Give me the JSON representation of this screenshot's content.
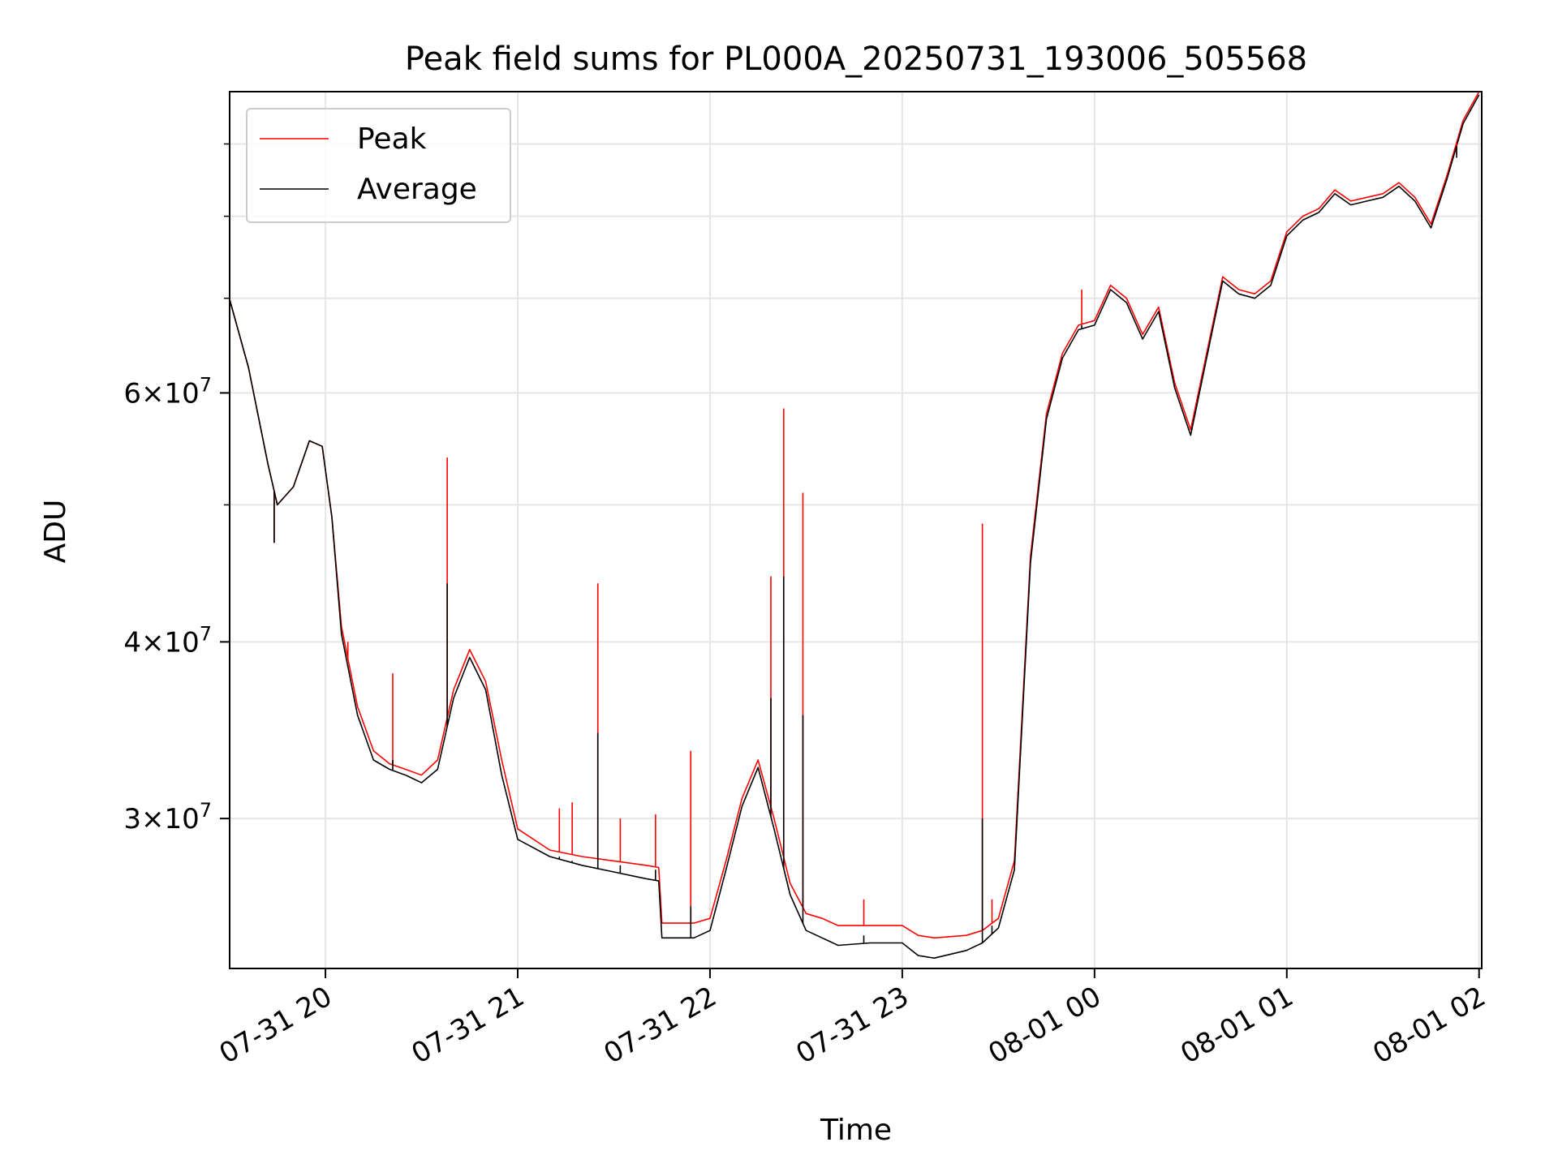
{
  "chart_data": {
    "type": "line",
    "title": "Peak field sums for PL000A_20250731_193006_505568",
    "xlabel": "Time",
    "ylabel": "ADU",
    "yscale": "log",
    "xlim": [
      "2025-07-31 19:30:06",
      "2025-08-01 02:00:50"
    ],
    "ylim": [
      23500000,
      98000000
    ],
    "grid": true,
    "legend_position": "upper left",
    "x_ticks": [
      {
        "t": "2025-07-31 20:00",
        "label": "07-31 20"
      },
      {
        "t": "2025-07-31 21:00",
        "label": "07-31 21"
      },
      {
        "t": "2025-07-31 22:00",
        "label": "07-31 22"
      },
      {
        "t": "2025-07-31 23:00",
        "label": "07-31 23"
      },
      {
        "t": "2025-08-01 00:00",
        "label": "08-01 00"
      },
      {
        "t": "2025-08-01 01:00",
        "label": "08-01 01"
      },
      {
        "t": "2025-08-01 02:00",
        "label": "08-01 02"
      }
    ],
    "y_ticks": [
      {
        "value": 30000000,
        "base": "3",
        "exp": "7"
      },
      {
        "value": 40000000,
        "base": "4",
        "exp": "7"
      },
      {
        "value": 60000000,
        "base": "6",
        "exp": "7"
      }
    ],
    "y_minor_ticks": [
      50000000,
      70000000,
      80000000,
      90000000
    ],
    "times_sorted": [
      "2025-07-31 19:30",
      "2025-07-31 19:36",
      "2025-07-31 19:42",
      "2025-07-31 19:45",
      "2025-07-31 19:50",
      "2025-07-31 19:55",
      "2025-07-31 19:59",
      "2025-07-31 20:02",
      "2025-07-31 20:05",
      "2025-07-31 20:10",
      "2025-07-31 20:15",
      "2025-07-31 20:20",
      "2025-07-31 20:25",
      "2025-07-31 20:30",
      "2025-07-31 20:35",
      "2025-07-31 20:40",
      "2025-07-31 20:45",
      "2025-07-31 20:50",
      "2025-07-31 20:55",
      "2025-07-31 21:00",
      "2025-07-31 21:10",
      "2025-07-31 21:20",
      "2025-07-31 21:30",
      "2025-07-31 21:40",
      "2025-07-31 21:44",
      "2025-07-31 21:45",
      "2025-07-31 21:55",
      "2025-07-31 22:00",
      "2025-07-31 22:05",
      "2025-07-31 22:10",
      "2025-07-31 22:15",
      "2025-07-31 22:20",
      "2025-07-31 22:25",
      "2025-07-31 22:30",
      "2025-07-31 22:35",
      "2025-07-31 22:40",
      "2025-07-31 22:50",
      "2025-07-31 23:00",
      "2025-07-31 23:05",
      "2025-07-31 23:10",
      "2025-07-31 23:20",
      "2025-07-31 23:25",
      "2025-07-31 23:30",
      "2025-07-31 23:35",
      "2025-07-31 23:40",
      "2025-07-31 23:45",
      "2025-07-31 23:50",
      "2025-07-31 23:55",
      "2025-08-01 00:00",
      "2025-08-01 00:05",
      "2025-08-01 00:10",
      "2025-08-01 00:15",
      "2025-08-01 00:20",
      "2025-08-01 00:25",
      "2025-08-01 00:30",
      "2025-08-01 00:35",
      "2025-08-01 00:40",
      "2025-08-01 00:45",
      "2025-08-01 00:50",
      "2025-08-01 00:55",
      "2025-08-01 01:00",
      "2025-08-01 01:05",
      "2025-08-01 01:10",
      "2025-08-01 01:15",
      "2025-08-01 01:20",
      "2025-08-01 01:25",
      "2025-08-01 01:30",
      "2025-08-01 01:35",
      "2025-08-01 01:40",
      "2025-08-01 01:45",
      "2025-08-01 01:50",
      "2025-08-01 01:55",
      "2025-08-01 02:00"
    ],
    "series": [
      {
        "name": "Peak",
        "color": "#ff0000",
        "x": [
          "2025-07-31 19:30",
          "2025-07-31 19:36",
          "2025-07-31 19:42",
          "2025-07-31 19:45",
          "2025-07-31 19:50",
          "2025-07-31 19:55",
          "2025-07-31 19:59",
          "2025-07-31 20:02",
          "2025-07-31 20:05",
          "2025-07-31 20:10",
          "2025-07-31 20:15",
          "2025-07-31 20:20",
          "2025-07-31 20:25",
          "2025-07-31 20:30",
          "2025-07-31 20:35",
          "2025-07-31 20:40",
          "2025-07-31 20:45",
          "2025-07-31 20:50",
          "2025-07-31 20:55",
          "2025-07-31 21:00",
          "2025-07-31 21:10",
          "2025-07-31 21:20",
          "2025-07-31 21:30",
          "2025-07-31 21:40",
          "2025-07-31 21:44",
          "2025-07-31 21:45",
          "2025-07-31 21:55",
          "2025-07-31 22:00",
          "2025-07-31 22:05",
          "2025-07-31 22:10",
          "2025-07-31 22:15",
          "2025-07-31 22:20",
          "2025-07-31 22:25",
          "2025-07-31 22:30",
          "2025-07-31 22:35",
          "2025-07-31 22:40",
          "2025-07-31 22:50",
          "2025-07-31 23:00",
          "2025-07-31 23:05",
          "2025-07-31 23:10",
          "2025-07-31 23:20",
          "2025-07-31 23:25",
          "2025-07-31 23:30",
          "2025-07-31 23:35",
          "2025-07-31 23:40",
          "2025-07-31 23:45",
          "2025-07-31 23:50",
          "2025-07-31 23:55",
          "2025-08-01 00:00",
          "2025-08-01 00:05",
          "2025-08-01 00:10",
          "2025-08-01 00:15",
          "2025-08-01 00:20",
          "2025-08-01 00:25",
          "2025-08-01 00:30",
          "2025-08-01 00:35",
          "2025-08-01 00:40",
          "2025-08-01 00:45",
          "2025-08-01 00:50",
          "2025-08-01 00:55",
          "2025-08-01 01:00",
          "2025-08-01 01:05",
          "2025-08-01 01:10",
          "2025-08-01 01:15",
          "2025-08-01 01:20",
          "2025-08-01 01:25",
          "2025-08-01 01:30",
          "2025-08-01 01:35",
          "2025-08-01 01:40",
          "2025-08-01 01:45",
          "2025-08-01 01:50",
          "2025-08-01 01:55",
          "2025-08-01 02:00"
        ],
        "values": [
          70000000,
          62500000,
          53500000,
          50000000,
          51500000,
          55500000,
          55000000,
          49000000,
          41000000,
          36000000,
          33500000,
          32800000,
          32500000,
          32200000,
          33000000,
          37000000,
          39500000,
          37500000,
          33000000,
          29500000,
          28500000,
          28200000,
          28000000,
          27800000,
          27700000,
          25300000,
          25300000,
          25500000,
          28000000,
          31000000,
          33000000,
          30000000,
          27000000,
          25700000,
          25500000,
          25200000,
          25200000,
          25200000,
          24800000,
          24700000,
          24800000,
          25000000,
          25500000,
          28000000,
          46000000,
          58000000,
          64000000,
          67000000,
          67500000,
          71500000,
          70000000,
          66000000,
          69000000,
          61000000,
          56500000,
          64000000,
          72500000,
          71000000,
          70500000,
          72000000,
          78000000,
          80000000,
          81000000,
          83500000,
          82000000,
          82500000,
          83000000,
          84500000,
          82500000,
          79000000,
          85500000,
          93500000,
          98000000
        ]
      },
      {
        "name": "Average",
        "color": "#000000",
        "x": [
          "2025-07-31 19:30",
          "2025-07-31 19:36",
          "2025-07-31 19:42",
          "2025-07-31 19:45",
          "2025-07-31 19:50",
          "2025-07-31 19:55",
          "2025-07-31 19:59",
          "2025-07-31 20:02",
          "2025-07-31 20:05",
          "2025-07-31 20:10",
          "2025-07-31 20:15",
          "2025-07-31 20:20",
          "2025-07-31 20:25",
          "2025-07-31 20:30",
          "2025-07-31 20:35",
          "2025-07-31 20:40",
          "2025-07-31 20:45",
          "2025-07-31 20:50",
          "2025-07-31 20:55",
          "2025-07-31 21:00",
          "2025-07-31 21:10",
          "2025-07-31 21:20",
          "2025-07-31 21:30",
          "2025-07-31 21:40",
          "2025-07-31 21:44",
          "2025-07-31 21:45",
          "2025-07-31 21:55",
          "2025-07-31 22:00",
          "2025-07-31 22:05",
          "2025-07-31 22:10",
          "2025-07-31 22:15",
          "2025-07-31 22:20",
          "2025-07-31 22:25",
          "2025-07-31 22:30",
          "2025-07-31 22:35",
          "2025-07-31 22:40",
          "2025-07-31 22:50",
          "2025-07-31 23:00",
          "2025-07-31 23:05",
          "2025-07-31 23:10",
          "2025-07-31 23:20",
          "2025-07-31 23:25",
          "2025-07-31 23:30",
          "2025-07-31 23:35",
          "2025-07-31 23:40",
          "2025-07-31 23:45",
          "2025-07-31 23:50",
          "2025-07-31 23:55",
          "2025-08-01 00:00",
          "2025-08-01 00:05",
          "2025-08-01 00:10",
          "2025-08-01 00:15",
          "2025-08-01 00:20",
          "2025-08-01 00:25",
          "2025-08-01 00:30",
          "2025-08-01 00:35",
          "2025-08-01 00:40",
          "2025-08-01 00:45",
          "2025-08-01 00:50",
          "2025-08-01 00:55",
          "2025-08-01 01:00",
          "2025-08-01 01:05",
          "2025-08-01 01:10",
          "2025-08-01 01:15",
          "2025-08-01 01:20",
          "2025-08-01 01:25",
          "2025-08-01 01:30",
          "2025-08-01 01:35",
          "2025-08-01 01:40",
          "2025-08-01 01:45",
          "2025-08-01 01:50",
          "2025-08-01 01:55",
          "2025-08-01 02:00"
        ],
        "values": [
          70000000,
          62500000,
          53500000,
          50000000,
          51500000,
          55500000,
          55000000,
          49000000,
          40500000,
          35500000,
          33000000,
          32500000,
          32200000,
          31800000,
          32500000,
          36500000,
          39000000,
          37000000,
          32200000,
          29000000,
          28200000,
          27800000,
          27500000,
          27200000,
          27100000,
          24700000,
          24700000,
          25000000,
          27600000,
          30600000,
          32600000,
          29500000,
          26500000,
          25000000,
          24700000,
          24400000,
          24500000,
          24500000,
          24000000,
          23900000,
          24200000,
          24500000,
          25100000,
          27600000,
          45500000,
          57500000,
          63500000,
          66500000,
          67000000,
          71000000,
          69500000,
          65500000,
          68500000,
          60500000,
          56000000,
          63500000,
          72000000,
          70500000,
          70000000,
          71500000,
          77500000,
          79500000,
          80500000,
          83000000,
          81500000,
          82000000,
          82500000,
          84000000,
          82000000,
          78500000,
          85000000,
          93000000,
          97500000
        ]
      }
    ],
    "spikes": [
      {
        "t": "2025-07-31 19:44",
        "peak": 47000000,
        "average": 47000000
      },
      {
        "t": "2025-07-31 20:07",
        "peak": 40000000,
        "average": 38500000
      },
      {
        "t": "2025-07-31 20:21",
        "peak": 38000000,
        "average": 33000000
      },
      {
        "t": "2025-07-31 20:38",
        "peak": 54000000,
        "average": 44000000
      },
      {
        "t": "2025-07-31 21:13",
        "peak": 30500000,
        "average": 28200000
      },
      {
        "t": "2025-07-31 21:17",
        "peak": 30800000,
        "average": 28000000
      },
      {
        "t": "2025-07-31 21:25",
        "peak": 44000000,
        "average": 34500000
      },
      {
        "t": "2025-07-31 21:32",
        "peak": 30000000,
        "average": 27800000
      },
      {
        "t": "2025-07-31 21:43",
        "peak": 30200000,
        "average": 27600000
      },
      {
        "t": "2025-07-31 21:54",
        "peak": 33500000,
        "average": 26000000
      },
      {
        "t": "2025-07-31 22:19",
        "peak": 44500000,
        "average": 36500000
      },
      {
        "t": "2025-07-31 22:23",
        "peak": 58500000,
        "average": 44500000
      },
      {
        "t": "2025-07-31 22:29",
        "peak": 51000000,
        "average": 35500000
      },
      {
        "t": "2025-07-31 22:48",
        "peak": 26300000,
        "average": 24800000
      },
      {
        "t": "2025-07-31 23:25",
        "peak": 48500000,
        "average": 30000000
      },
      {
        "t": "2025-07-31 23:28",
        "peak": 26300000,
        "average": 25200000
      },
      {
        "t": "2025-07-31 23:56",
        "peak": 71000000,
        "average": 67000000
      },
      {
        "t": "2025-08-01 01:53",
        "peak": 88500000,
        "average": 88000000
      }
    ]
  },
  "legend": {
    "items": [
      {
        "label": "Peak",
        "color": "#ff0000"
      },
      {
        "label": "Average",
        "color": "#000000"
      }
    ]
  }
}
